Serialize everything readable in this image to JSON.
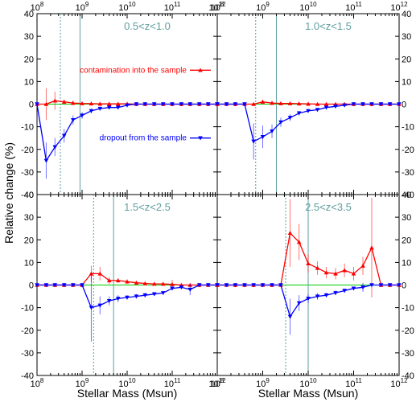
{
  "figure": {
    "xlabel": "Stellar Mass (Msun)",
    "ylabel": "Relative change (%)"
  },
  "colors": {
    "contamination": "#ff0000",
    "dropout": "#0000ff",
    "zero_line": "#00cc00",
    "vline": "#5f9ea0",
    "label": "#5f9ea0"
  },
  "chart_data": [
    {
      "type": "line",
      "panel_label": "0.5<z<1.0",
      "x_scale": "log",
      "xlim": [
        100000000,
        1000000000000
      ],
      "ylim": [
        -40,
        40
      ],
      "x_tick_labels": [
        "10^8",
        "10^9",
        "10^10",
        "10^11",
        "10^12"
      ],
      "y_ticks": [
        -40,
        -30,
        -20,
        -10,
        0,
        10,
        20,
        30,
        40
      ],
      "vlines": [
        {
          "x": 330000000,
          "style": "dashed"
        },
        {
          "x": 900000000,
          "style": "solid"
        }
      ],
      "series": [
        {
          "name": "contamination into the sample",
          "marker": "triangle-up",
          "x": [
            100000000,
            160000000,
            250000000,
            400000000,
            630000000,
            1000000000,
            1600000000,
            2500000000,
            4000000000,
            6300000000,
            10000000000,
            16000000000,
            25000000000,
            40000000000,
            63000000000,
            100000000000,
            160000000000,
            250000000000,
            400000000000,
            630000000000,
            1000000000000
          ],
          "y": [
            0,
            0,
            1.5,
            1.0,
            0.5,
            0.3,
            0.2,
            0.1,
            0.1,
            0.1,
            0.1,
            0,
            0,
            0,
            0,
            0,
            0,
            0,
            0,
            0,
            0
          ],
          "err": [
            0,
            7,
            4,
            1,
            1,
            0.5,
            0.5,
            0.3,
            0.3,
            0.3,
            0.3,
            0,
            0,
            0,
            0,
            0,
            0,
            0,
            0,
            0,
            0
          ]
        },
        {
          "name": "dropout from the sample",
          "marker": "triangle-down",
          "x": [
            100000000,
            160000000,
            250000000,
            400000000,
            630000000,
            1000000000,
            1600000000,
            2500000000,
            4000000000,
            6300000000,
            10000000000,
            16000000000,
            25000000000,
            40000000000,
            63000000000,
            100000000000,
            160000000000,
            250000000000,
            400000000000,
            630000000000,
            1000000000000
          ],
          "y": [
            0,
            -25,
            -19,
            -14,
            -7,
            -5,
            -3,
            -2,
            -1.5,
            -1.5,
            -0.5,
            0,
            0,
            0,
            0,
            0,
            0,
            0,
            0,
            0,
            0
          ],
          "err": [
            0,
            8,
            4,
            3,
            2,
            1.5,
            1,
            0.8,
            0.6,
            0.5,
            0.3,
            0,
            0,
            0,
            0,
            0,
            0,
            0,
            0,
            0,
            0
          ]
        }
      ]
    },
    {
      "type": "line",
      "panel_label": "1.0<z<1.5",
      "x_scale": "log",
      "xlim": [
        100000000,
        1000000000000
      ],
      "ylim": [
        -40,
        40
      ],
      "x_tick_labels": [
        "10^8",
        "10^9",
        "10^10",
        "10^11",
        "10^12"
      ],
      "y_ticks": [
        -40,
        -30,
        -20,
        -10,
        0,
        10,
        20,
        30,
        40
      ],
      "vlines": [
        {
          "x": 700000000,
          "style": "dashed"
        },
        {
          "x": 2000000000,
          "style": "solid"
        }
      ],
      "series": [
        {
          "name": "contamination into the sample",
          "marker": "triangle-up",
          "x": [
            100000000,
            160000000,
            250000000,
            400000000,
            630000000,
            1000000000,
            1600000000,
            2500000000,
            4000000000,
            6300000000,
            10000000000,
            16000000000,
            25000000000,
            40000000000,
            63000000000,
            100000000000,
            160000000000,
            250000000000,
            400000000000,
            630000000000,
            1000000000000
          ],
          "y": [
            0,
            0,
            0,
            0,
            0,
            1.0,
            0.5,
            0.3,
            0.3,
            0.2,
            0.1,
            0,
            0,
            0,
            0,
            0,
            0,
            0,
            0,
            0,
            0
          ],
          "err": [
            0,
            0,
            0,
            0,
            0,
            1,
            0.8,
            0.5,
            0.3,
            0.3,
            0.3,
            0,
            0,
            0,
            0,
            0,
            0,
            0,
            0,
            0,
            0
          ]
        },
        {
          "name": "dropout from the sample",
          "marker": "triangle-down",
          "x": [
            100000000,
            160000000,
            250000000,
            400000000,
            630000000,
            1000000000,
            1600000000,
            2500000000,
            4000000000,
            6300000000,
            10000000000,
            16000000000,
            25000000000,
            40000000000,
            63000000000,
            100000000000,
            160000000000,
            250000000000,
            400000000000,
            630000000000,
            1000000000000
          ],
          "y": [
            0,
            0,
            0,
            0,
            -16.5,
            -14.5,
            -12,
            -8,
            -6,
            -4,
            -3,
            -2.5,
            -1.5,
            -1,
            -0.5,
            0,
            0,
            0,
            0,
            0,
            0
          ],
          "err": [
            0,
            0,
            0,
            0,
            8,
            5,
            3,
            2,
            1.5,
            1,
            0.8,
            0.5,
            0.5,
            0.3,
            0.3,
            0,
            0,
            0,
            0,
            0,
            0
          ]
        }
      ]
    },
    {
      "type": "line",
      "panel_label": "1.5<z<2.5",
      "x_scale": "log",
      "xlim": [
        100000000,
        1000000000000
      ],
      "ylim": [
        -40,
        40
      ],
      "x_tick_labels": [
        "10^8",
        "10^9",
        "10^10",
        "10^11",
        "10^12"
      ],
      "y_ticks": [
        -40,
        -30,
        -20,
        -10,
        0,
        10,
        20,
        30,
        40
      ],
      "vlines": [
        {
          "x": 1800000000,
          "style": "dashed"
        },
        {
          "x": 5000000000,
          "style": "solid"
        }
      ],
      "series": [
        {
          "name": "contamination into the sample",
          "marker": "triangle-up",
          "x": [
            100000000,
            160000000,
            250000000,
            400000000,
            630000000,
            1000000000,
            1600000000,
            2500000000,
            4000000000,
            6300000000,
            10000000000,
            16000000000,
            25000000000,
            40000000000,
            63000000000,
            100000000000,
            160000000000,
            250000000000,
            400000000000,
            630000000000,
            1000000000000
          ],
          "y": [
            0,
            0,
            0,
            0,
            0,
            0,
            5,
            5,
            2,
            2,
            1.5,
            1,
            0.7,
            0.5,
            0.5,
            0.3,
            0,
            0,
            0,
            0,
            0
          ],
          "err": [
            0,
            0,
            0,
            0,
            0,
            0,
            3.5,
            3,
            1.5,
            1,
            1,
            0.7,
            0.5,
            0.5,
            0.5,
            2,
            0,
            0,
            0,
            0,
            0
          ]
        },
        {
          "name": "dropout from the sample",
          "marker": "triangle-down",
          "x": [
            100000000,
            160000000,
            250000000,
            400000000,
            630000000,
            1000000000,
            1600000000,
            2500000000,
            4000000000,
            6300000000,
            10000000000,
            16000000000,
            25000000000,
            40000000000,
            63000000000,
            100000000000,
            160000000000,
            250000000000,
            400000000000,
            630000000000,
            1000000000000
          ],
          "y": [
            0,
            0,
            0,
            0,
            0,
            0,
            -10,
            -9,
            -7,
            -6,
            -5.5,
            -5,
            -4.5,
            -4,
            -3.5,
            -1.5,
            -1,
            -2,
            0,
            0,
            0
          ],
          "err": [
            0,
            0,
            0,
            0,
            0,
            0,
            15,
            4,
            2,
            1.5,
            1,
            1,
            1,
            0.8,
            0.5,
            0.5,
            0.5,
            2.5,
            0,
            0,
            0
          ]
        }
      ]
    },
    {
      "type": "line",
      "panel_label": "2.5<z<3.5",
      "x_scale": "log",
      "xlim": [
        100000000,
        1000000000000
      ],
      "ylim": [
        -40,
        40
      ],
      "x_tick_labels": [
        "10^8",
        "10^9",
        "10^10",
        "10^11",
        "10^12"
      ],
      "y_ticks": [
        -40,
        -30,
        -20,
        -10,
        0,
        10,
        20,
        30,
        40
      ],
      "vlines": [
        {
          "x": 3200000000,
          "style": "dashed"
        },
        {
          "x": 10000000000,
          "style": "solid"
        }
      ],
      "series": [
        {
          "name": "contamination into the sample",
          "marker": "triangle-up",
          "x": [
            100000000,
            160000000,
            250000000,
            400000000,
            630000000,
            1000000000,
            1600000000,
            2500000000,
            4000000000,
            6300000000,
            10000000000,
            16000000000,
            25000000000,
            40000000000,
            63000000000,
            100000000000,
            160000000000,
            250000000000,
            400000000000,
            630000000000,
            1000000000000
          ],
          "y": [
            0,
            0,
            0,
            0,
            0,
            0,
            0,
            0,
            23,
            19,
            9.5,
            7.5,
            5.5,
            5,
            6.5,
            5,
            8.5,
            16.5,
            0,
            0,
            0
          ],
          "err": [
            0,
            0,
            0,
            0,
            0,
            0,
            0,
            0,
            15,
            8,
            4,
            3,
            2.5,
            2.5,
            3,
            3,
            4,
            22,
            0,
            0,
            0
          ]
        },
        {
          "name": "dropout from the sample",
          "marker": "triangle-down",
          "x": [
            100000000,
            160000000,
            250000000,
            400000000,
            630000000,
            1000000000,
            1600000000,
            2500000000,
            4000000000,
            6300000000,
            10000000000,
            16000000000,
            25000000000,
            40000000000,
            63000000000,
            100000000000,
            160000000000,
            250000000000,
            400000000000,
            630000000000,
            1000000000000
          ],
          "y": [
            0,
            0,
            0,
            0,
            0,
            0,
            0,
            0,
            -14,
            -8,
            -6,
            -5,
            -4.5,
            -3.5,
            -2.5,
            -1.5,
            -1,
            0,
            0,
            0,
            0
          ],
          "err": [
            0,
            0,
            0,
            0,
            0,
            0,
            0,
            0,
            8,
            3.5,
            2,
            1.5,
            1,
            1,
            0.8,
            0.7,
            2,
            0,
            0,
            0,
            0
          ]
        }
      ]
    }
  ]
}
